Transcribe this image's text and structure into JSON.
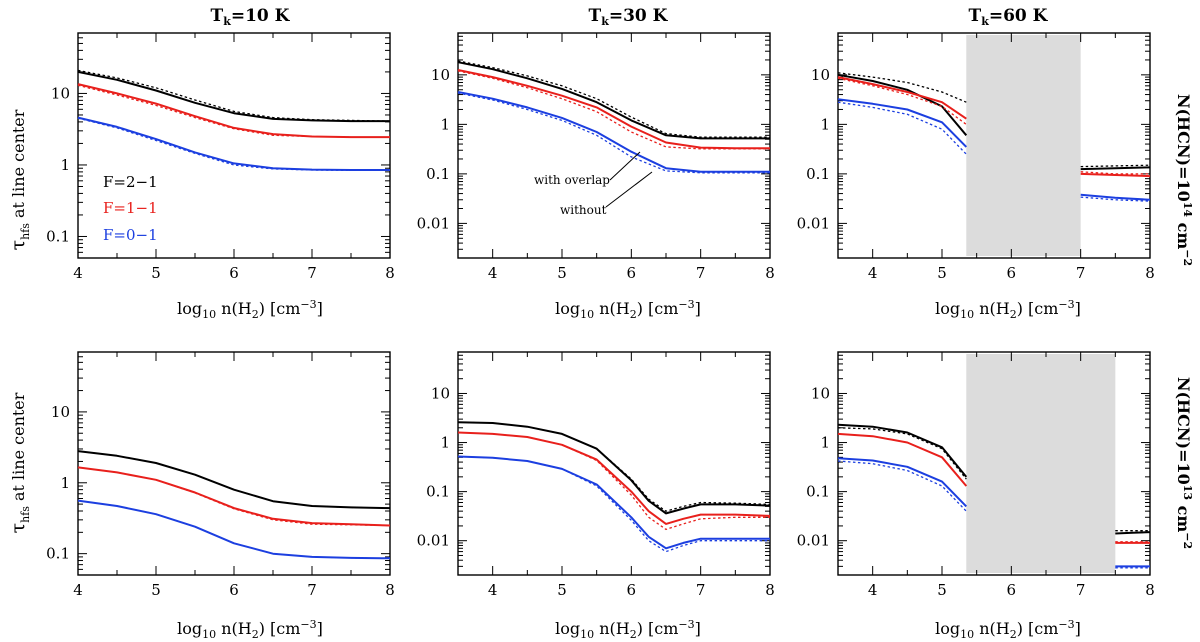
{
  "figure": {
    "column_titles": [
      {
        "main": "T",
        "sub": "k",
        "rest": "=10 K"
      },
      {
        "main": "T",
        "sub": "k",
        "rest": "=30 K"
      },
      {
        "main": "T",
        "sub": "k",
        "rest": "=60 K"
      }
    ],
    "row_labels": [
      {
        "pre": "N(HCN)=10",
        "sup": "14",
        "post": " cm",
        "sup2": "−2"
      },
      {
        "pre": "N(HCN)=10",
        "sup": "13",
        "post": " cm",
        "sup2": "−2"
      }
    ],
    "ylabel": {
      "sym": "τ",
      "sub": "hfs",
      "rest": " at line center"
    },
    "xlabel": {
      "pre": "log",
      "sub": "10",
      "mid": " n(H",
      "sub2": "2",
      "post": ") [cm",
      "sup": "−3",
      "end": "]"
    },
    "legend": [
      {
        "label": "F=2−1",
        "color": "#000000"
      },
      {
        "label": "F=1−1",
        "color": "#e8201c"
      },
      {
        "label": "F=0−1",
        "color": "#1c3fe0"
      }
    ],
    "annotations": {
      "with": "with overlap",
      "without": "without"
    },
    "colors": {
      "F21": "#000000",
      "F11": "#e8201c",
      "F01": "#1c3fe0",
      "shade": "#dcdcdc"
    }
  },
  "chart_data": [
    {
      "type": "line",
      "panel": "row1-col1",
      "xlim": [
        4,
        8
      ],
      "ylim": [
        0.05,
        70
      ],
      "yscale": "log",
      "x": [
        4,
        4.5,
        5,
        5.5,
        6,
        6.5,
        7,
        7.5,
        8
      ],
      "series": [
        {
          "name": "F=2−1",
          "with_overlap": [
            20,
            15.5,
            11,
            7.4,
            5.3,
            4.4,
            4.2,
            4.1,
            4.1
          ],
          "without": [
            21,
            16.5,
            12,
            8.1,
            5.6,
            4.6,
            4.3,
            4.2,
            4.1
          ]
        },
        {
          "name": "F=1−1",
          "with_overlap": [
            13.5,
            10,
            7.2,
            4.8,
            3.3,
            2.7,
            2.5,
            2.45,
            2.45
          ],
          "without": [
            13,
            9.5,
            6.8,
            4.6,
            3.2,
            2.6,
            2.5,
            2.45,
            2.45
          ]
        },
        {
          "name": "F=0−1",
          "with_overlap": [
            4.6,
            3.4,
            2.3,
            1.5,
            1.05,
            0.9,
            0.86,
            0.85,
            0.85
          ],
          "without": [
            4.5,
            3.3,
            2.2,
            1.45,
            1.0,
            0.88,
            0.85,
            0.84,
            0.84
          ]
        }
      ]
    },
    {
      "type": "line",
      "panel": "row1-col2",
      "xlim": [
        3.5,
        8
      ],
      "ylim": [
        0.002,
        70
      ],
      "yscale": "log",
      "x": [
        3.5,
        4,
        4.5,
        5,
        5.5,
        6,
        6.5,
        7,
        7.5,
        8
      ],
      "series": [
        {
          "name": "F=2−1",
          "with_overlap": [
            18,
            13,
            8.5,
            5.2,
            2.8,
            1.2,
            0.6,
            0.52,
            0.52,
            0.52
          ],
          "without": [
            19,
            14,
            9.5,
            6,
            3.3,
            1.4,
            0.65,
            0.55,
            0.55,
            0.55
          ]
        },
        {
          "name": "F=1−1",
          "with_overlap": [
            12.5,
            9,
            6,
            3.8,
            2.2,
            0.9,
            0.43,
            0.34,
            0.33,
            0.33
          ],
          "without": [
            12,
            8.5,
            5.5,
            3.3,
            1.8,
            0.7,
            0.35,
            0.32,
            0.32,
            0.32
          ]
        },
        {
          "name": "F=0−1",
          "with_overlap": [
            4.5,
            3.3,
            2.2,
            1.35,
            0.7,
            0.28,
            0.13,
            0.11,
            0.11,
            0.11
          ],
          "without": [
            4.3,
            3.1,
            2.0,
            1.2,
            0.6,
            0.22,
            0.115,
            0.105,
            0.105,
            0.105
          ]
        }
      ]
    },
    {
      "type": "line",
      "panel": "row1-col3",
      "xlim": [
        3.5,
        8
      ],
      "ylim": [
        0.002,
        70
      ],
      "yscale": "log",
      "shaded_x": [
        5.35,
        7.0
      ],
      "segments": [
        {
          "x": [
            3.5,
            4,
            4.5,
            5,
            5.35
          ],
          "series": [
            {
              "name": "F=2−1",
              "with_overlap": [
                10,
                7.5,
                5,
                2.3,
                0.6
              ],
              "without": [
                11,
                9,
                7,
                4.5,
                2.8
              ]
            },
            {
              "name": "F=1−1",
              "with_overlap": [
                9,
                6.5,
                4.5,
                2.8,
                1.3
              ],
              "without": [
                8.5,
                6,
                4,
                2.3,
                1.0
              ]
            },
            {
              "name": "F=0−1",
              "with_overlap": [
                3.2,
                2.6,
                2.0,
                1.1,
                0.35
              ],
              "without": [
                2.8,
                2.2,
                1.6,
                0.8,
                0.25
              ]
            }
          ]
        },
        {
          "x": [
            7.0,
            7.5,
            8
          ],
          "series": [
            {
              "name": "F=2−1",
              "with_overlap": [
                0.125,
                0.13,
                0.135
              ],
              "without": [
                0.14,
                0.145,
                0.15
              ]
            },
            {
              "name": "F=1−1",
              "with_overlap": [
                0.1,
                0.095,
                0.09
              ],
              "without": [
                0.11,
                0.1,
                0.1
              ]
            },
            {
              "name": "F=0−1",
              "with_overlap": [
                0.038,
                0.033,
                0.03
              ],
              "without": [
                0.034,
                0.03,
                0.028
              ]
            }
          ]
        }
      ]
    },
    {
      "type": "line",
      "panel": "row2-col1",
      "xlim": [
        4,
        8
      ],
      "ylim": [
        0.05,
        70
      ],
      "yscale": "log",
      "x": [
        4,
        4.5,
        5,
        5.5,
        6,
        6.5,
        7,
        7.5,
        8
      ],
      "series": [
        {
          "name": "F=2−1",
          "with_overlap": [
            2.8,
            2.4,
            1.9,
            1.3,
            0.8,
            0.55,
            0.47,
            0.45,
            0.44
          ],
          "without": [
            2.8,
            2.4,
            1.9,
            1.3,
            0.8,
            0.55,
            0.47,
            0.45,
            0.44
          ]
        },
        {
          "name": "F=1−1",
          "with_overlap": [
            1.65,
            1.4,
            1.1,
            0.73,
            0.44,
            0.31,
            0.27,
            0.26,
            0.25
          ],
          "without": [
            1.65,
            1.4,
            1.1,
            0.72,
            0.43,
            0.3,
            0.26,
            0.255,
            0.25
          ]
        },
        {
          "name": "F=0−1",
          "with_overlap": [
            0.56,
            0.47,
            0.36,
            0.24,
            0.14,
            0.1,
            0.09,
            0.087,
            0.086
          ],
          "without": [
            0.56,
            0.47,
            0.36,
            0.24,
            0.14,
            0.1,
            0.09,
            0.087,
            0.086
          ]
        }
      ]
    },
    {
      "type": "line",
      "panel": "row2-col2",
      "xlim": [
        3.5,
        8
      ],
      "ylim": [
        0.002,
        70
      ],
      "yscale": "log",
      "x": [
        3.5,
        4,
        4.5,
        5,
        5.5,
        6,
        6.25,
        6.5,
        6.75,
        7,
        7.5,
        8
      ],
      "series": [
        {
          "name": "F=2−1",
          "with_overlap": [
            2.6,
            2.5,
            2.1,
            1.5,
            0.75,
            0.17,
            0.065,
            0.036,
            0.045,
            0.055,
            0.055,
            0.052
          ],
          "without": [
            2.6,
            2.5,
            2.1,
            1.5,
            0.75,
            0.18,
            0.07,
            0.04,
            0.05,
            0.06,
            0.058,
            0.055
          ]
        },
        {
          "name": "F=1−1",
          "with_overlap": [
            1.6,
            1.5,
            1.3,
            0.9,
            0.45,
            0.1,
            0.04,
            0.022,
            0.028,
            0.034,
            0.034,
            0.032
          ],
          "without": [
            1.6,
            1.5,
            1.3,
            0.9,
            0.43,
            0.085,
            0.03,
            0.017,
            0.022,
            0.028,
            0.03,
            0.03
          ]
        },
        {
          "name": "F=0−1",
          "with_overlap": [
            0.52,
            0.49,
            0.42,
            0.29,
            0.14,
            0.03,
            0.012,
            0.007,
            0.009,
            0.011,
            0.011,
            0.011
          ],
          "without": [
            0.52,
            0.49,
            0.42,
            0.29,
            0.13,
            0.026,
            0.01,
            0.006,
            0.008,
            0.01,
            0.01,
            0.01
          ]
        }
      ]
    },
    {
      "type": "line",
      "panel": "row2-col3",
      "xlim": [
        3.5,
        8
      ],
      "ylim": [
        0.002,
        70
      ],
      "yscale": "log",
      "shaded_x": [
        5.35,
        7.5
      ],
      "segments": [
        {
          "x": [
            3.5,
            4,
            4.5,
            5,
            5.35
          ],
          "series": [
            {
              "name": "F=2−1",
              "with_overlap": [
                2.3,
                2.1,
                1.6,
                0.8,
                0.2
              ],
              "without": [
                2.0,
                1.9,
                1.5,
                0.75,
                0.18
              ]
            },
            {
              "name": "F=1−1",
              "with_overlap": [
                1.5,
                1.35,
                1.0,
                0.5,
                0.13
              ],
              "without": [
                1.5,
                1.35,
                1.0,
                0.5,
                0.13
              ]
            },
            {
              "name": "F=0−1",
              "with_overlap": [
                0.48,
                0.43,
                0.32,
                0.16,
                0.05
              ],
              "without": [
                0.42,
                0.37,
                0.27,
                0.13,
                0.04
              ]
            }
          ]
        },
        {
          "x": [
            7.5,
            7.75,
            8
          ],
          "series": [
            {
              "name": "F=2−1",
              "with_overlap": [
                0.014,
                0.0145,
                0.015
              ],
              "without": [
                0.016,
                0.016,
                0.016
              ]
            },
            {
              "name": "F=1−1",
              "with_overlap": [
                0.009,
                0.009,
                0.009
              ],
              "without": [
                0.0095,
                0.0095,
                0.0095
              ]
            },
            {
              "name": "F=0−1",
              "with_overlap": [
                0.003,
                0.003,
                0.003
              ],
              "without": [
                0.0028,
                0.0028,
                0.0028
              ]
            }
          ]
        }
      ]
    }
  ]
}
